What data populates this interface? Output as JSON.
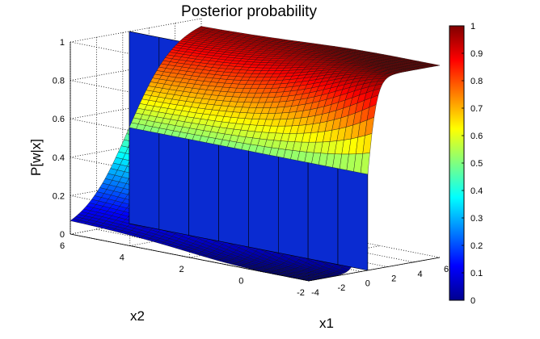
{
  "chart_data": {
    "type": "surface",
    "title": "Posterior probability",
    "xlabel": "x1",
    "ylabel": "x2",
    "zlabel": "P[w|x]",
    "x_range": [
      -4,
      6
    ],
    "y_range": [
      -2,
      6
    ],
    "z_range": [
      0,
      1
    ],
    "x_ticks": [
      "-4",
      "-2",
      "0",
      "2",
      "4",
      "6"
    ],
    "y_ticks": [
      "-2",
      "0",
      "2",
      "4",
      "6"
    ],
    "z_ticks": [
      "0",
      "0.2",
      "0.4",
      "0.6",
      "0.8",
      "1"
    ],
    "colorbar_ticks": [
      "0",
      "0.1",
      "0.2",
      "0.3",
      "0.4",
      "0.5",
      "0.6",
      "0.7",
      "0.8",
      "0.9",
      "1"
    ],
    "colormap": "jet",
    "grid": true,
    "colorbar": "right",
    "decision_plane_x1": 0.5,
    "decision_plane_color": "#0a2bd1",
    "surface_samples": {
      "x2": [
        -2,
        0,
        2,
        4,
        6
      ],
      "x1": [
        -4,
        -2,
        0,
        0.5,
        1,
        2,
        4,
        6
      ],
      "P": [
        [
          0.0,
          0.0,
          0.15,
          0.5,
          0.85,
          1.0,
          1.0,
          1.0
        ],
        [
          0.0,
          0.02,
          0.3,
          0.5,
          0.7,
          0.98,
          1.0,
          1.0
        ],
        [
          0.0,
          0.06,
          0.36,
          0.5,
          0.64,
          0.94,
          1.0,
          1.0
        ],
        [
          0.0,
          0.1,
          0.39,
          0.5,
          0.61,
          0.9,
          1.0,
          1.0
        ],
        [
          0.0,
          0.13,
          0.42,
          0.5,
          0.58,
          0.87,
          1.0,
          1.0
        ]
      ]
    }
  }
}
